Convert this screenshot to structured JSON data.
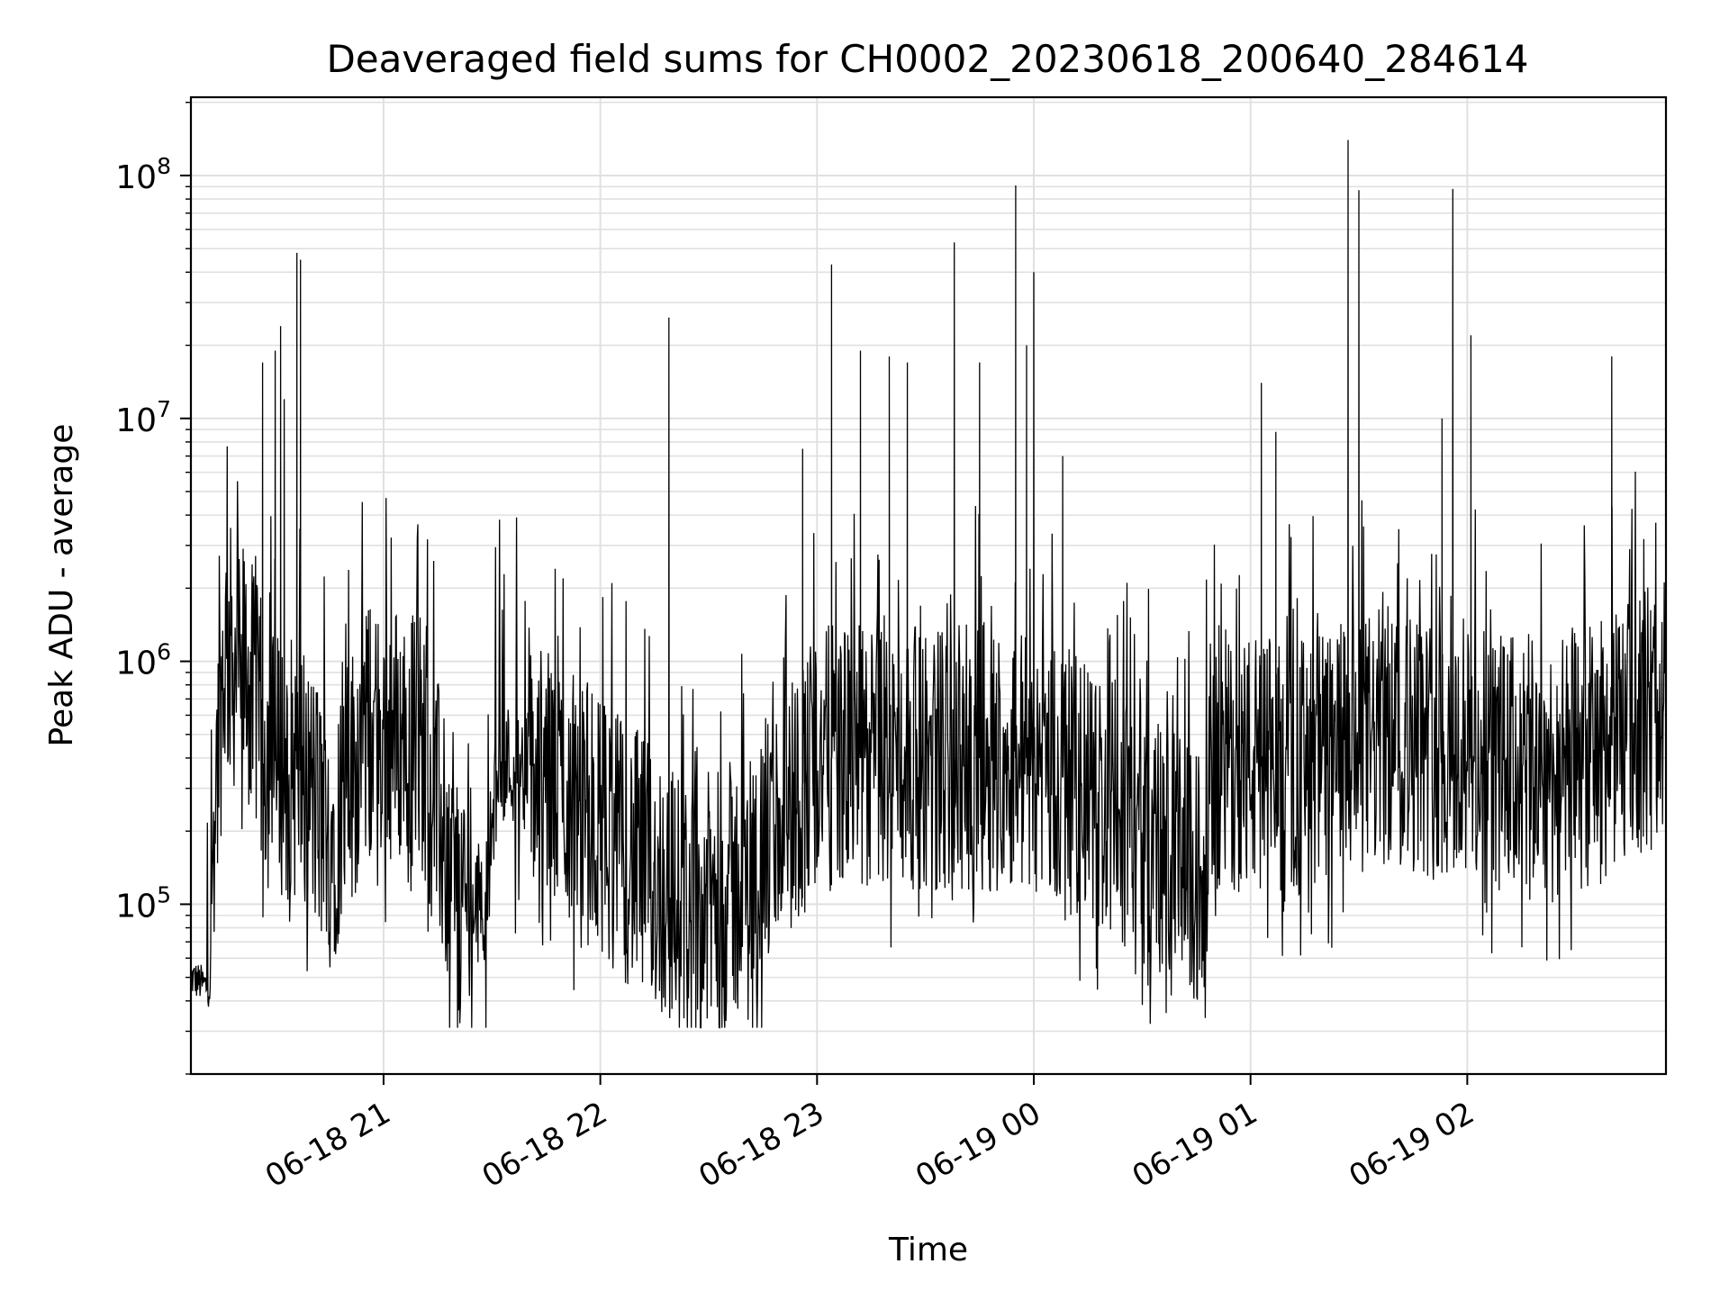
{
  "chart_data": {
    "type": "line",
    "title": "Deaveraged field sums for CH0002_20230618_200640_284614",
    "xlabel": "Time",
    "ylabel": "Peak ADU - average",
    "yscale": "log",
    "ylim": [
      20000,
      210000000
    ],
    "xlim": [
      "2023-06-18 20:06:40",
      "2023-06-19 02:55:00"
    ],
    "grid": true,
    "legend": "none",
    "line_color": "#000000",
    "x_ticks": [
      {
        "value": "2023-06-18 21:00",
        "label": "06-18 21"
      },
      {
        "value": "2023-06-18 22:00",
        "label": "06-18 22"
      },
      {
        "value": "2023-06-18 23:00",
        "label": "06-18 23"
      },
      {
        "value": "2023-06-19 00:00",
        "label": "06-19 00"
      },
      {
        "value": "2023-06-19 01:00",
        "label": "06-19 01"
      },
      {
        "value": "2023-06-19 02:00",
        "label": "06-19 02"
      }
    ],
    "y_ticks": [
      {
        "value": 100000,
        "base": "10",
        "exp": "5"
      },
      {
        "value": 1000000,
        "base": "10",
        "exp": "6"
      },
      {
        "value": 10000000,
        "base": "10",
        "exp": "7"
      },
      {
        "value": 100000000,
        "base": "10",
        "exp": "8"
      }
    ],
    "series": [
      {
        "baseline": [
          [
            "2023-06-18 20:06:40",
            50000
          ],
          [
            "2023-06-18 20:12:00",
            45000
          ],
          [
            "2023-06-18 20:13:00",
            250000
          ],
          [
            "2023-06-18 20:16:00",
            1100000
          ],
          [
            "2023-06-18 20:22:00",
            900000
          ],
          [
            "2023-06-18 20:28:00",
            400000
          ],
          [
            "2023-06-18 20:38:00",
            350000
          ],
          [
            "2023-06-18 20:45:00",
            180000
          ],
          [
            "2023-06-18 20:55:00",
            500000
          ],
          [
            "2023-06-18 21:10:00",
            500000
          ],
          [
            "2023-06-18 21:20:00",
            110000
          ],
          [
            "2023-06-18 21:28:00",
            100000
          ],
          [
            "2023-06-18 21:32:00",
            400000
          ],
          [
            "2023-06-18 21:50:00",
            300000
          ],
          [
            "2023-06-18 22:10:00",
            150000
          ],
          [
            "2023-06-18 22:25:00",
            90000
          ],
          [
            "2023-06-18 22:40:00",
            120000
          ],
          [
            "2023-06-18 23:00:00",
            400000
          ],
          [
            "2023-06-18 23:20:00",
            400000
          ],
          [
            "2023-06-19 00:00:00",
            400000
          ],
          [
            "2023-06-19 00:30:00",
            200000
          ],
          [
            "2023-06-19 00:45:00",
            120000
          ],
          [
            "2023-06-19 00:52:00",
            400000
          ],
          [
            "2023-06-19 01:10:00",
            350000
          ],
          [
            "2023-06-19 01:40:00",
            500000
          ],
          [
            "2023-06-19 02:00:00",
            400000
          ],
          [
            "2023-06-19 02:25:00",
            350000
          ],
          [
            "2023-06-19 02:40:00",
            450000
          ],
          [
            "2023-06-19 02:55:00",
            700000
          ]
        ],
        "spikes": [
          [
            "2023-06-18 20:26:30",
            17000000
          ],
          [
            "2023-06-18 20:30:00",
            19000000
          ],
          [
            "2023-06-18 20:31:30",
            24000000
          ],
          [
            "2023-06-18 20:32:30",
            12000000
          ],
          [
            "2023-06-18 20:36:00",
            48000000
          ],
          [
            "2023-06-18 20:37:00",
            45000000
          ],
          [
            "2023-06-18 22:19:00",
            26000000
          ],
          [
            "2023-06-18 22:56:00",
            7500000
          ],
          [
            "2023-06-18 23:04:00",
            43000000
          ],
          [
            "2023-06-18 23:12:00",
            19000000
          ],
          [
            "2023-06-18 23:20:00",
            18000000
          ],
          [
            "2023-06-18 23:25:00",
            17000000
          ],
          [
            "2023-06-18 23:38:00",
            53000000
          ],
          [
            "2023-06-18 23:45:00",
            17000000
          ],
          [
            "2023-06-18 23:55:00",
            91000000
          ],
          [
            "2023-06-18 23:58:00",
            20000000
          ],
          [
            "2023-06-19 00:00:00",
            40000000
          ],
          [
            "2023-06-19 00:08:00",
            7000000
          ],
          [
            "2023-06-19 01:03:00",
            14000000
          ],
          [
            "2023-06-19 01:07:00",
            8800000
          ],
          [
            "2023-06-19 01:27:00",
            140000000
          ],
          [
            "2023-06-19 01:30:00",
            87000000
          ],
          [
            "2023-06-19 01:53:00",
            10000000
          ],
          [
            "2023-06-19 01:56:00",
            88000000
          ],
          [
            "2023-06-19 02:01:00",
            22000000
          ],
          [
            "2023-06-19 02:40:00",
            18000000
          ]
        ]
      }
    ]
  }
}
